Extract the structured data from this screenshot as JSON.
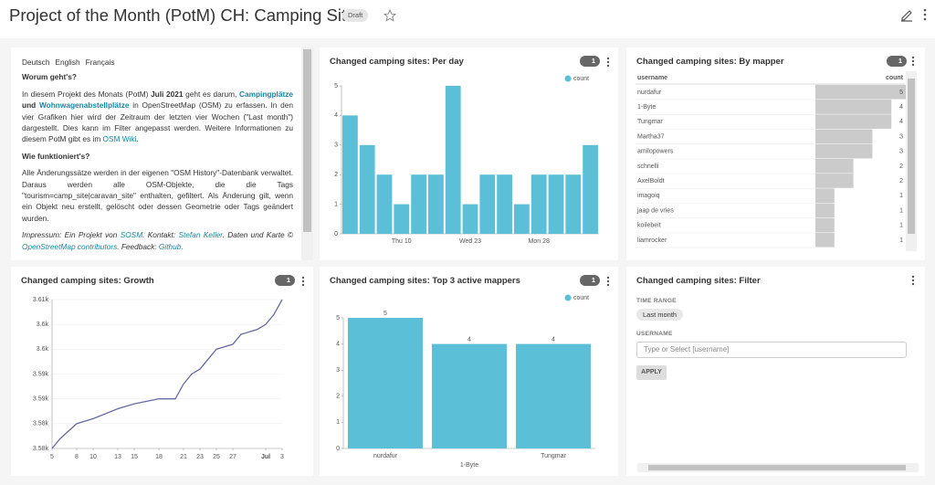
{
  "header": {
    "title": "Project of the Month (PotM) CH: Camping Sites",
    "badge": "Draft"
  },
  "text_panel": {
    "languages": [
      "Deutsch",
      "English",
      "Français"
    ],
    "sections": [
      {
        "heading": "Worum geht's?",
        "paragraphs": [
          [
            {
              "text": "In diesem Projekt des Monats (PotM) ",
              "style": "plain"
            },
            {
              "text": "Juli 2021",
              "style": "bold"
            },
            {
              "text": " geht es darum, ",
              "style": "plain"
            },
            {
              "text": "Campingplätze",
              "style": "link-bold"
            },
            {
              "text": " und ",
              "style": "bold"
            },
            {
              "text": "Wohnwagenabstellplätze",
              "style": "link-bold"
            },
            {
              "text": " in OpenStreetMap (OSM) zu erfassen. In den vier Grafiken hier wird der Zeitraum der letzten vier Wochen (\"Last month\") dargestellt. Dies kann im Filter angepasst werden. Weitere Informationen zu diesem PotM gibt es im ",
              "style": "plain"
            },
            {
              "text": "OSM Wiki",
              "style": "link"
            },
            {
              "text": ".",
              "style": "plain"
            }
          ]
        ]
      },
      {
        "heading": "Wie funktioniert's?",
        "paragraphs": [
          [
            {
              "text": "Alle Änderungssätze werden in der eigenen \"OSM History\"-Datenbank verwaltet. Daraus werden alle OSM-Objekte, die die Tags \"tourism=camp_site|caravan_site\" enthalten, gefiltert. Als Änderung gilt, wenn ein Objekt neu erstellt, gelöscht oder dessen Geometrie oder Tags geändert wurden.",
              "style": "plain"
            }
          ],
          [
            {
              "text": "Impressum: Ein Projekt von ",
              "style": "italic"
            },
            {
              "text": "SOSM",
              "style": "italic-link"
            },
            {
              "text": ". Kontakt: ",
              "style": "italic"
            },
            {
              "text": "Stefan Keller",
              "style": "italic-link"
            },
            {
              "text": ". Daten und Karte © ",
              "style": "italic"
            },
            {
              "text": "OpenStreetMap contributors",
              "style": "italic-link"
            },
            {
              "text": ". Feedback: ",
              "style": "italic"
            },
            {
              "text": "Github",
              "style": "italic-link"
            },
            {
              "text": ".",
              "style": "italic"
            }
          ]
        ]
      }
    ]
  },
  "chart_data": [
    {
      "type": "bar",
      "title": "Changed camping sites: Per day",
      "filters": 1,
      "categories": [
        null,
        null,
        null,
        "Thu 10",
        null,
        null,
        null,
        "Wed 23",
        null,
        null,
        null,
        "Mon 28",
        null,
        null,
        null
      ],
      "series": [
        {
          "name": "count",
          "color": "#5bbfd8",
          "values": [
            4,
            3,
            2,
            1,
            2,
            2,
            5,
            1,
            2,
            2,
            1,
            2,
            2,
            2,
            3
          ]
        }
      ],
      "ylim": [
        0,
        5
      ],
      "yticks": [
        0,
        1,
        2,
        3,
        4,
        5
      ],
      "legend": "top-right"
    },
    {
      "type": "line",
      "title": "Changed camping sites: Growth",
      "filters": 1,
      "x": [
        5,
        6,
        8,
        10,
        13,
        15,
        18,
        20,
        21,
        22,
        23,
        25,
        27,
        28,
        30,
        31,
        32,
        33
      ],
      "values": [
        3580,
        3582,
        3585,
        3586,
        3588,
        3589,
        3590,
        3590,
        3593,
        3595,
        3596,
        3600,
        3601,
        3603,
        3604,
        3605,
        3607,
        3610
      ],
      "color": "#676b9c",
      "xlim": [
        5,
        33
      ],
      "xticks": [
        5,
        8,
        10,
        13,
        15,
        18,
        21,
        23,
        25,
        27,
        {
          "value": 31,
          "label": "Jul"
        },
        {
          "value": 33,
          "label": "3"
        }
      ],
      "ylim": [
        3580,
        3610
      ],
      "yticks": [
        {
          "value": 3580,
          "label": "3.58k"
        },
        {
          "value": 3585,
          "label": "3.58k"
        },
        {
          "value": 3590,
          "label": "3.59k"
        },
        {
          "value": 3595,
          "label": "3.59k"
        },
        {
          "value": 3600,
          "label": "3.6k"
        },
        {
          "value": 3605,
          "label": "3.6k"
        },
        {
          "value": 3610,
          "label": "3.61k"
        }
      ],
      "grid": true
    },
    {
      "type": "bar",
      "title": "Changed camping sites: Top 3 active mappers",
      "filters": 1,
      "categories": [
        "nurdafur",
        "1-Byte",
        "Tungmar"
      ],
      "series": [
        {
          "name": "count",
          "color": "#5bbfd8",
          "values": [
            5,
            4,
            4
          ]
        }
      ],
      "ylim": [
        0,
        5
      ],
      "yticks": [
        0,
        1,
        2,
        3,
        4,
        5
      ],
      "legend": "top-right",
      "data_labels": true
    }
  ],
  "table": {
    "title": "Changed camping sites: By mapper",
    "filters": 1,
    "columns": [
      "username",
      "count"
    ],
    "rows": [
      [
        "nurdafur",
        5
      ],
      [
        "1-Byte",
        4
      ],
      [
        "Tungmar",
        4
      ],
      [
        "Martha37",
        3
      ],
      [
        "amilopowers",
        3
      ],
      [
        "schnelli",
        2
      ],
      [
        "AxelBoldt",
        2
      ],
      [
        "imagoiq",
        1
      ],
      [
        "jaap de vries",
        1
      ],
      [
        "koilebeit",
        1
      ],
      [
        "liamrocker",
        1
      ]
    ]
  },
  "filter_panel": {
    "title": "Changed camping sites: Filter",
    "time_range_label": "TIME RANGE",
    "time_range": "Last month",
    "username_label": "USERNAME",
    "username_placeholder": "Type or Select [username]",
    "button": "APPLY"
  }
}
